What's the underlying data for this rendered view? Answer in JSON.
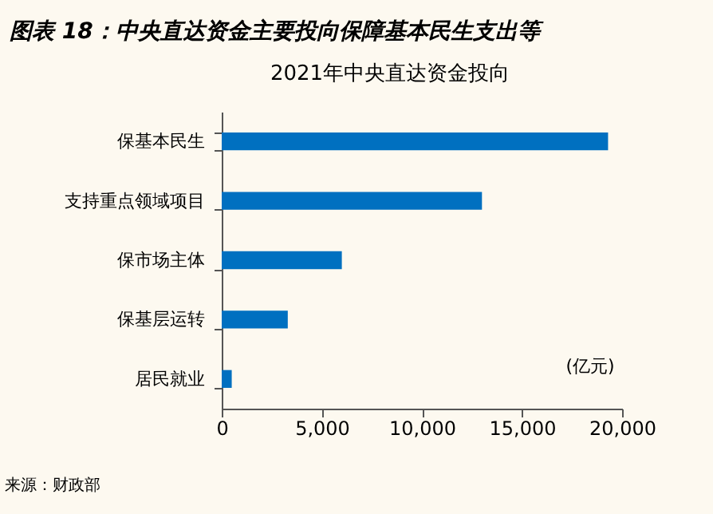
{
  "chart_data": {
    "type": "bar",
    "orientation": "horizontal",
    "title": "图表 18：中央直达资金主要投向保障基本民生支出等",
    "subtitle": "2021年中央直达资金投向",
    "categories": [
      "保基本民生",
      "支持重点领域项目",
      "保市场主体",
      "保基层运转",
      "居民就业"
    ],
    "values": [
      19300,
      13000,
      6000,
      3300,
      500
    ],
    "color": "#0070c0",
    "xlim": [
      0,
      20000
    ],
    "xticks": [
      0,
      {
        "value": 5000,
        "label": "5,000"
      },
      {
        "value": 10000,
        "label": "10,000"
      },
      {
        "value": 15000,
        "label": "15,000"
      },
      {
        "value": 20000,
        "label": "20,000"
      }
    ],
    "grid": false,
    "annotations": [
      "(亿元)",
      "来源：财政部"
    ]
  }
}
